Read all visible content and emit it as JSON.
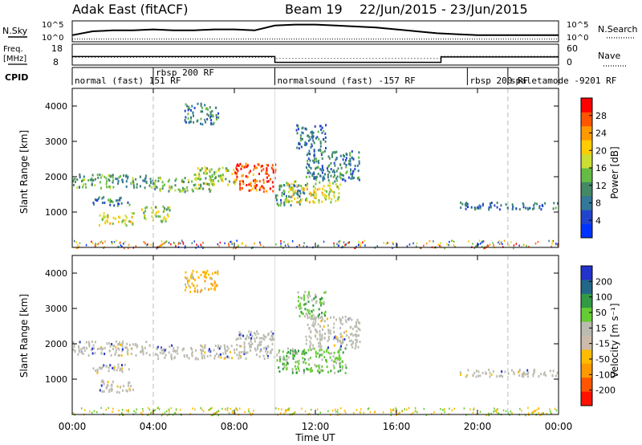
{
  "header": {
    "station": "Adak East (fitACF)",
    "beam_info": "Beam 19",
    "date_range": "22/Jun/2015 - 23/Jun/2015"
  },
  "chart_data": [
    {
      "type": "line",
      "panel": "noise",
      "left_label": "N.Sky",
      "right_label": "N.Search",
      "left_ticks": [
        "10^5",
        "10^0"
      ],
      "right_ticks": [
        "10^5",
        "10^0"
      ],
      "series": [
        {
          "name": "N.Sky",
          "x": [
            0,
            1,
            2,
            3,
            4,
            5,
            6,
            7,
            8,
            9,
            10,
            11,
            12,
            13,
            14,
            15,
            16,
            17,
            18,
            19,
            20,
            21,
            22,
            23,
            24
          ],
          "y": [
            0.3,
            0.5,
            0.55,
            0.55,
            0.6,
            0.55,
            0.55,
            0.6,
            0.6,
            0.55,
            0.8,
            0.85,
            0.85,
            0.8,
            0.75,
            0.7,
            0.6,
            0.5,
            0.4,
            0.35,
            0.3,
            0.3,
            0.3,
            0.3,
            0.3
          ]
        },
        {
          "name": "N.Search",
          "x": [
            0,
            4,
            8,
            10,
            14,
            18,
            20,
            24
          ],
          "y": [
            0.1,
            0.1,
            0.1,
            0.1,
            0.1,
            0.1,
            0.1,
            0.1
          ]
        }
      ]
    },
    {
      "type": "line",
      "panel": "frequency",
      "left_label": "Freq.",
      "left_unit": "[MHz]",
      "right_label": "Nave",
      "left_ticks": [
        "18",
        "8"
      ],
      "right_ticks": [
        "60",
        "0"
      ],
      "series": [
        {
          "name": "Freq.",
          "x": [
            0,
            10,
            10,
            18.2,
            18.2,
            24
          ],
          "y": [
            12,
            12,
            9,
            9,
            11.8,
            11.8
          ]
        },
        {
          "name": "Nave",
          "x": [
            0,
            10,
            10,
            18.2,
            18.2,
            24
          ],
          "y": [
            22,
            22,
            18,
            18,
            25,
            25
          ]
        }
      ]
    },
    {
      "type": "table",
      "panel": "cpid",
      "label": "CPID",
      "modes": [
        {
          "text": "normal (fast)  151 RF",
          "start": 0.0
        },
        {
          "text": "rbsp 200 RF",
          "start": 4.0
        },
        {
          "text": "normalsound (fast) -157 RF",
          "start": 10.0
        },
        {
          "text": "rbsp 200 RF",
          "start": 19.5
        },
        {
          "text": "spaletamode -9201 RF",
          "start": 21.5
        }
      ],
      "boundaries": [
        4.0,
        10.0,
        19.5,
        21.5
      ]
    },
    {
      "type": "heatmap",
      "panel": "power",
      "ylabel": "Slant Range [km]",
      "ylim": [
        0,
        4500
      ],
      "yticks": [
        1000,
        2000,
        3000,
        4000
      ],
      "colorbar": {
        "label": "Power [dB]",
        "ticks": [
          4,
          8,
          12,
          16,
          20,
          24,
          28
        ],
        "colors": [
          "#0033ff",
          "#2244cc",
          "#337799",
          "#448866",
          "#66bb44",
          "#ccdd33",
          "#ffcc00",
          "#ff9900",
          "#ff5500",
          "#ff0000"
        ]
      },
      "regions": [
        {
          "t0": 0.0,
          "t1": 4.0,
          "r0": 1700,
          "r1": 2100,
          "level": 12
        },
        {
          "t0": 1.0,
          "t1": 2.8,
          "r0": 1200,
          "r1": 1450,
          "level": 10
        },
        {
          "t0": 1.3,
          "t1": 3.0,
          "r0": 650,
          "r1": 1000,
          "level": 18
        },
        {
          "t0": 3.4,
          "t1": 4.8,
          "r0": 750,
          "r1": 1200,
          "level": 16
        },
        {
          "t0": 4.0,
          "t1": 7.0,
          "r0": 1600,
          "r1": 2000,
          "level": 14
        },
        {
          "t0": 5.5,
          "t1": 7.2,
          "r0": 3500,
          "r1": 4100,
          "level": 10
        },
        {
          "t0": 6.0,
          "t1": 8.0,
          "r0": 1800,
          "r1": 2300,
          "level": 16
        },
        {
          "t0": 8.0,
          "t1": 10.0,
          "r0": 1600,
          "r1": 2400,
          "level": 26
        },
        {
          "t0": 10.0,
          "t1": 11.5,
          "r0": 1200,
          "r1": 1800,
          "level": 10
        },
        {
          "t0": 10.5,
          "t1": 13.2,
          "r0": 1300,
          "r1": 1900,
          "level": 18
        },
        {
          "t0": 11.5,
          "t1": 14.2,
          "r0": 1900,
          "r1": 2800,
          "level": 9
        },
        {
          "t0": 11.0,
          "t1": 12.5,
          "r0": 2800,
          "r1": 3500,
          "level": 9
        },
        {
          "t0": 19.0,
          "t1": 24.0,
          "r0": 1100,
          "r1": 1300,
          "level": 8
        }
      ]
    },
    {
      "type": "heatmap",
      "panel": "velocity",
      "xlabel": "Time UT",
      "ylabel": "Slant Range [km]",
      "ylim": [
        0,
        4500
      ],
      "yticks": [
        1000,
        2000,
        3000,
        4000
      ],
      "xticks": [
        "00:00",
        "04:00",
        "08:00",
        "12:00",
        "16:00",
        "20:00",
        "00:00"
      ],
      "colorbar": {
        "label": "Velocity [m s⁻¹]",
        "ticks": [
          "200",
          "100",
          "50",
          "15",
          "-15",
          "-50",
          "-100",
          "-200"
        ],
        "colors": [
          "#2233cc",
          "#226688",
          "#339944",
          "#66cc33",
          "#bbbbb0",
          "#ccbbaa",
          "#ffbb00",
          "#ff9900",
          "#ff5500",
          "#ff1100"
        ]
      },
      "regions": [
        {
          "t0": 0.0,
          "t1": 4.0,
          "r0": 1700,
          "r1": 2100,
          "v": 0
        },
        {
          "t0": 1.0,
          "t1": 2.8,
          "r0": 1200,
          "r1": 1450,
          "v": 0
        },
        {
          "t0": 1.3,
          "t1": 3.0,
          "r0": 650,
          "r1": 1000,
          "v": 0
        },
        {
          "t0": 4.0,
          "t1": 8.0,
          "r0": 1600,
          "r1": 2000,
          "v": 0
        },
        {
          "t0": 5.5,
          "t1": 7.2,
          "r0": 3500,
          "r1": 4100,
          "v": -60
        },
        {
          "t0": 8.0,
          "t1": 10.0,
          "r0": 1600,
          "r1": 2400,
          "v": 0
        },
        {
          "t0": 10.0,
          "t1": 13.5,
          "r0": 1200,
          "r1": 1900,
          "v": 30
        },
        {
          "t0": 11.5,
          "t1": 14.2,
          "r0": 1900,
          "r1": 2800,
          "v": 0
        },
        {
          "t0": 11.0,
          "t1": 12.5,
          "r0": 2800,
          "r1": 3500,
          "v": 40
        },
        {
          "t0": 19.0,
          "t1": 24.0,
          "r0": 1100,
          "r1": 1300,
          "v": 0
        }
      ]
    }
  ]
}
